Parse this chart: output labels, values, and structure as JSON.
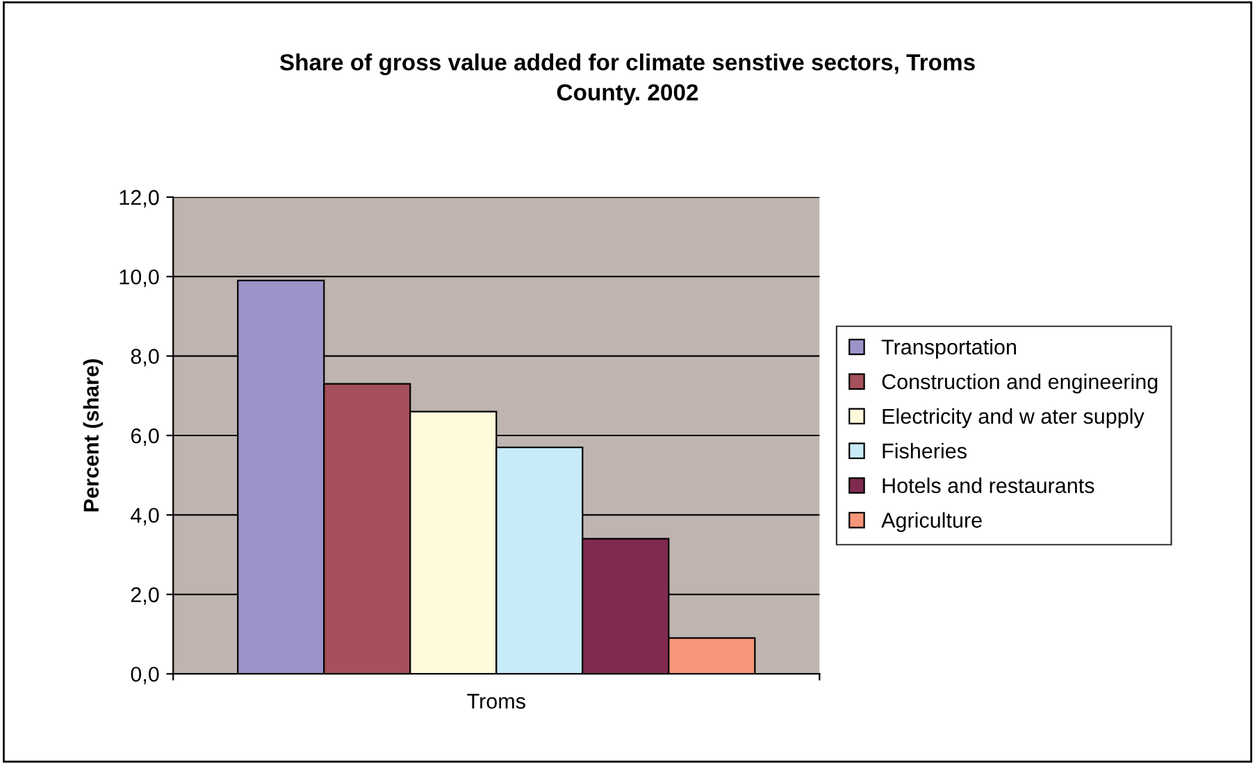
{
  "chart_data": {
    "type": "bar",
    "title": "Share of gross value added for climate senstive sectors, Troms\nCounty. 2002",
    "ylabel": "Percent (share)",
    "categories": [
      "Troms"
    ],
    "series": [
      {
        "name": "Transportation",
        "color": "#9a94c8",
        "values": [
          9.9
        ]
      },
      {
        "name": "Construction and engineering",
        "color": "#a5505a",
        "values": [
          7.3
        ]
      },
      {
        "name": "Electricity and w ater supply",
        "color": "#fffadc",
        "values": [
          6.6
        ]
      },
      {
        "name": "Fisheries",
        "color": "#c8ebf8",
        "values": [
          5.7
        ]
      },
      {
        "name": "Hotels and restaurants",
        "color": "#802a50",
        "values": [
          3.4
        ]
      },
      {
        "name": "Agriculture",
        "color": "#f7967a",
        "values": [
          0.9
        ]
      }
    ],
    "ylim": [
      0,
      12
    ],
    "yticks": [
      {
        "value": 0,
        "label": "0,0"
      },
      {
        "value": 2,
        "label": "2,0"
      },
      {
        "value": 4,
        "label": "4,0"
      },
      {
        "value": 6,
        "label": "6,0"
      },
      {
        "value": 8,
        "label": "8,0"
      },
      {
        "value": 10,
        "label": "10,0"
      },
      {
        "value": 12,
        "label": "12,0"
      }
    ],
    "grid": "y",
    "legend": "right"
  }
}
